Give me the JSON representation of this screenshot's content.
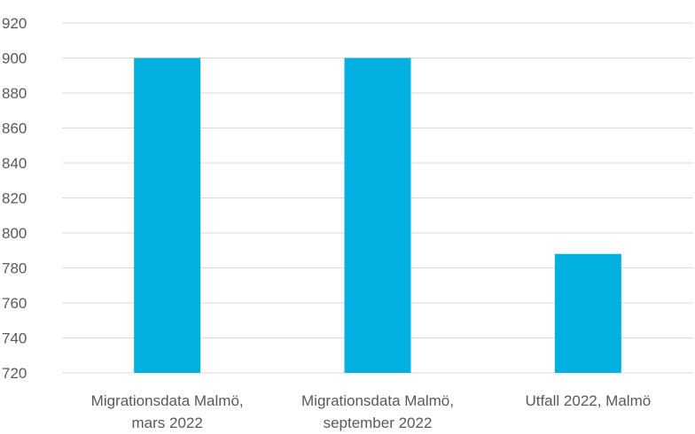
{
  "chart_data": {
    "type": "bar",
    "categories": [
      [
        "Migrationsdata Malmö,",
        "mars 2022"
      ],
      [
        "Migrationsdata Malmö,",
        "september 2022"
      ],
      [
        "Utfall 2022, Malmö"
      ]
    ],
    "values": [
      900,
      900,
      788
    ],
    "ylim": [
      720,
      920
    ],
    "yticks": [
      720,
      740,
      760,
      780,
      800,
      820,
      840,
      860,
      880,
      900,
      920
    ],
    "grid": true,
    "colors": {
      "bar": "#00b0e0",
      "grid": "#d9d9d9",
      "text": "#595959"
    }
  }
}
